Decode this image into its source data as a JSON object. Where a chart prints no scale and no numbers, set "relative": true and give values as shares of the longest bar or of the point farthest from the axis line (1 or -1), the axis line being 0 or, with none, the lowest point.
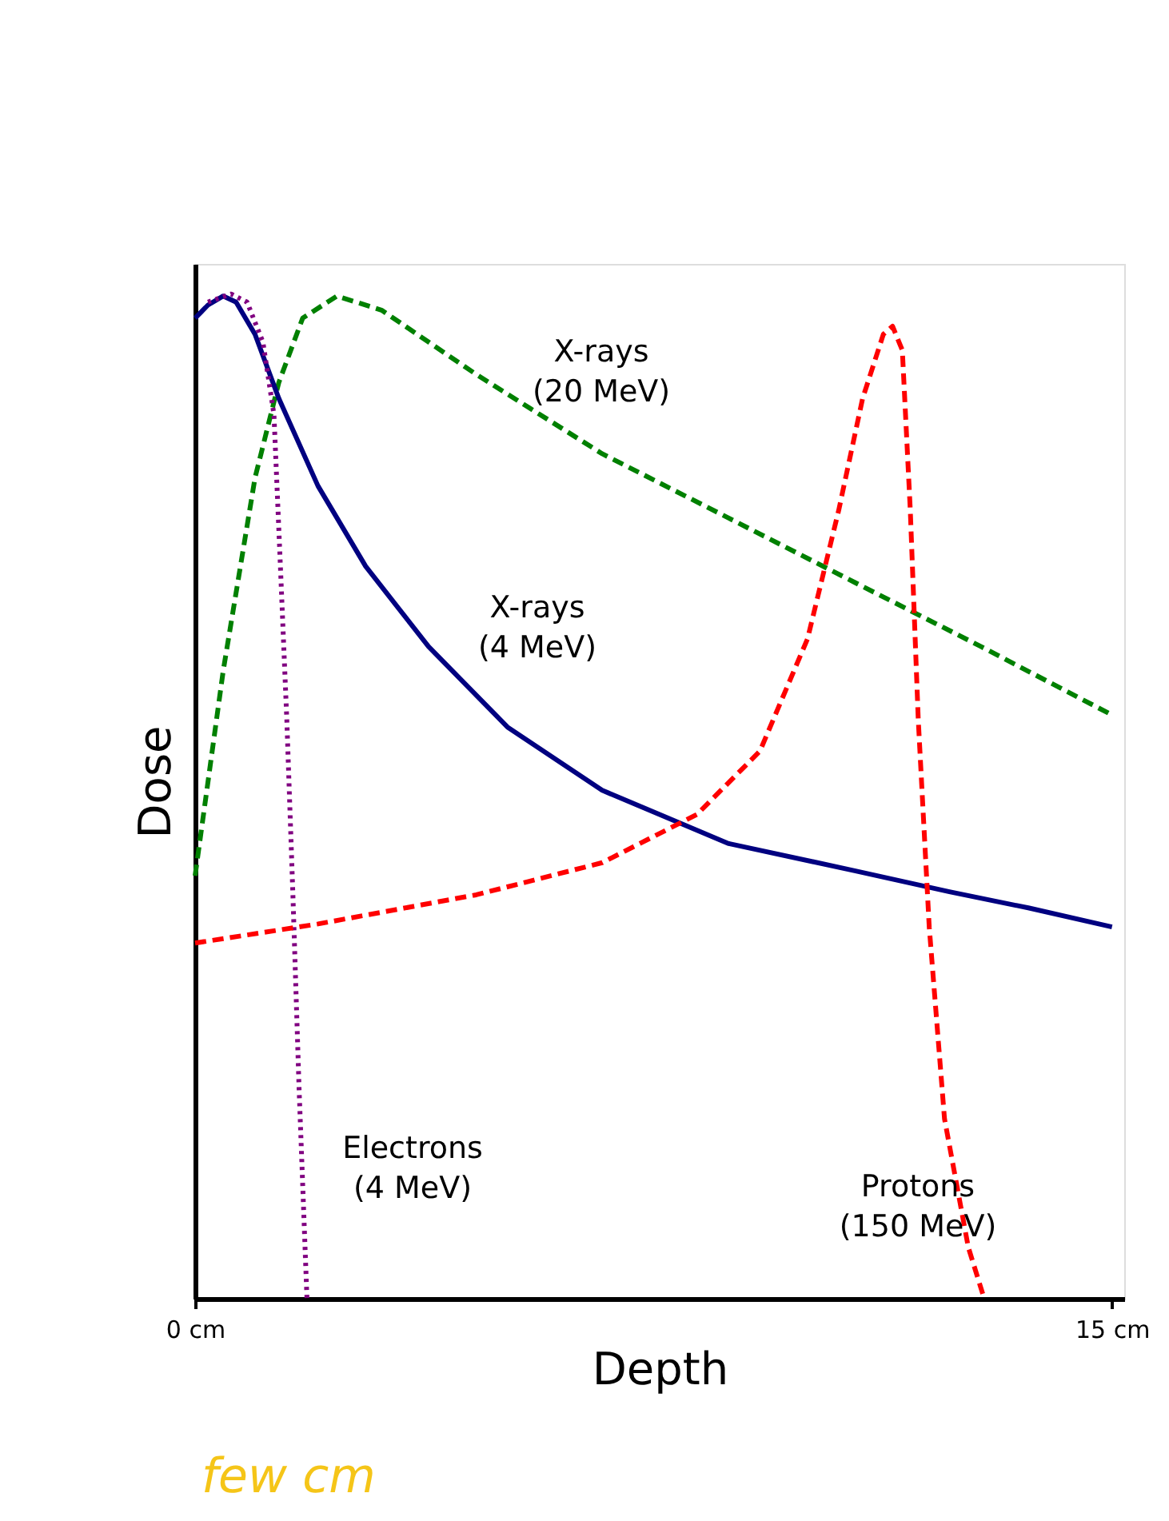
{
  "chart_data": {
    "type": "line",
    "relative": true,
    "xlabel": "Depth",
    "ylabel": "Dose",
    "tick_labels": "x",
    "grid": false,
    "legend": false,
    "marker": "none",
    "xlim": [
      0,
      15.2
    ],
    "xticks": [
      {
        "value": 0,
        "label": "0 cm"
      },
      {
        "value": 15,
        "label": "15 cm"
      }
    ],
    "series": [
      {
        "name": "X-rays (20 MeV)",
        "color": "#008000",
        "line_style": "dashed",
        "x": [
          0,
          0.46,
          0.98,
          1.37,
          1.76,
          2.32,
          3.05,
          4.6,
          6.66,
          8.73,
          10.79,
          12.86,
          15
        ],
        "values": [
          0.421,
          0.625,
          0.817,
          0.912,
          0.976,
          0.998,
          0.984,
          0.92,
          0.841,
          0.777,
          0.713,
          0.649,
          0.581
        ]
      },
      {
        "name": "X-rays (4 MeV)",
        "color": "#000080",
        "line_style": "solid",
        "x": [
          0,
          0.21,
          0.46,
          0.67,
          0.98,
          1.37,
          2.01,
          2.79,
          3.82,
          5.11,
          6.66,
          8.73,
          10.79,
          12.34,
          13.63,
          15
        ],
        "values": [
          0.976,
          0.989,
          0.998,
          0.992,
          0.96,
          0.896,
          0.809,
          0.729,
          0.649,
          0.569,
          0.506,
          0.453,
          0.426,
          0.405,
          0.389,
          0.37
        ]
      },
      {
        "name": "Electrons (4 MeV)",
        "color": "#800080",
        "line_style": "dotted",
        "x": [
          0.21,
          0.59,
          0.85,
          1.11,
          1.29,
          1.39,
          1.5,
          1.6,
          1.7,
          1.83
        ],
        "values": [
          0.992,
          1.0,
          0.992,
          0.952,
          0.88,
          0.737,
          0.577,
          0.402,
          0.211,
          0
        ]
      },
      {
        "name": "Protons (150 MeV)",
        "color": "#ff0000",
        "line_style": "dashed",
        "x": [
          0,
          2.01,
          4.6,
          6.66,
          8.21,
          9.24,
          10.02,
          10.53,
          10.92,
          11.26,
          11.41,
          11.57,
          11.7,
          11.83,
          12.01,
          12.26,
          12.65,
          12.91
        ],
        "values": [
          0.354,
          0.373,
          0.402,
          0.434,
          0.482,
          0.545,
          0.657,
          0.785,
          0.896,
          0.96,
          0.968,
          0.944,
          0.785,
          0.577,
          0.37,
          0.179,
          0.051,
          0
        ]
      }
    ],
    "annotations": [
      "few cm"
    ]
  }
}
